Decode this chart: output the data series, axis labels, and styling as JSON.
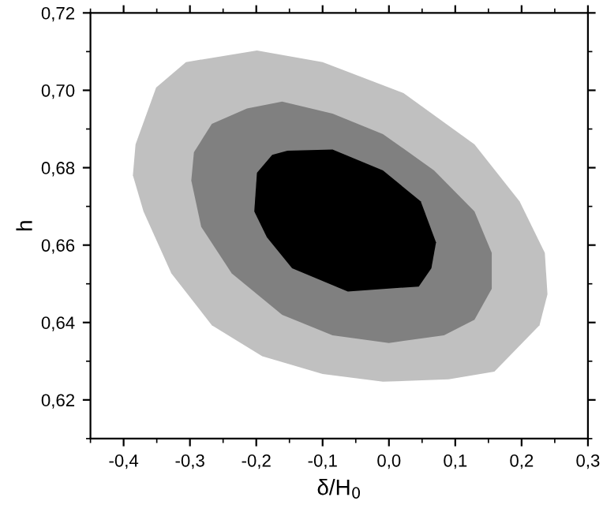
{
  "chart_data": {
    "type": "area",
    "xlabel": "δ/H$_{0}$",
    "ylabel": "h",
    "xlim": [
      -0.45,
      0.3
    ],
    "ylim": [
      0.61,
      0.72
    ],
    "xticks": [
      {
        "value": -0.4,
        "label": "-0,4"
      },
      {
        "value": -0.3,
        "label": "-0,3"
      },
      {
        "value": -0.2,
        "label": "-0,2"
      },
      {
        "value": -0.1,
        "label": "-0,1"
      },
      {
        "value": 0.0,
        "label": "0,0"
      },
      {
        "value": 0.1,
        "label": "0,1"
      },
      {
        "value": 0.2,
        "label": "0,2"
      },
      {
        "value": 0.3,
        "label": "0,3"
      }
    ],
    "yticks": [
      {
        "value": 0.62,
        "label": "0,62"
      },
      {
        "value": 0.64,
        "label": "0,64"
      },
      {
        "value": 0.66,
        "label": "0,66"
      },
      {
        "value": 0.68,
        "label": "0,68"
      },
      {
        "value": 0.7,
        "label": "0,70"
      },
      {
        "value": 0.72,
        "label": "0,72"
      }
    ],
    "grid": false,
    "legend": false,
    "series": [
      {
        "color": "#c0c0c0",
        "x": [
          -0.382,
          -0.351,
          -0.306,
          -0.199,
          -0.1,
          0.022,
          0.129,
          0.197,
          0.235,
          0.239,
          0.227,
          0.159,
          0.09,
          -0.009,
          -0.1,
          -0.191,
          -0.267,
          -0.328,
          -0.37,
          -0.386
        ],
        "values": [
          0.686,
          0.7007,
          0.7073,
          0.7103,
          0.7073,
          0.6993,
          0.686,
          0.6713,
          0.658,
          0.6473,
          0.6393,
          0.6273,
          0.6253,
          0.6247,
          0.6267,
          0.6313,
          0.6393,
          0.6527,
          0.6687,
          0.678
        ]
      },
      {
        "color": "#808080",
        "x": [
          -0.294,
          -0.267,
          -0.214,
          -0.161,
          -0.085,
          -0.009,
          0.068,
          0.129,
          0.155,
          0.155,
          0.129,
          0.083,
          0.0,
          -0.085,
          -0.161,
          -0.237,
          -0.283,
          -0.298
        ],
        "values": [
          0.684,
          0.6913,
          0.6953,
          0.6971,
          0.694,
          0.6887,
          0.6793,
          0.6687,
          0.658,
          0.6487,
          0.6407,
          0.6367,
          0.6347,
          0.6367,
          0.642,
          0.6527,
          0.6647,
          0.6767
        ]
      },
      {
        "color": "#000000",
        "x": [
          -0.199,
          -0.176,
          -0.153,
          -0.085,
          -0.009,
          0.048,
          0.071,
          0.064,
          0.045,
          -0.062,
          -0.146,
          -0.184,
          -0.203
        ],
        "values": [
          0.6787,
          0.6833,
          0.6844,
          0.6847,
          0.6793,
          0.6713,
          0.6607,
          0.654,
          0.6493,
          0.648,
          0.654,
          0.662,
          0.6687
        ]
      }
    ]
  }
}
